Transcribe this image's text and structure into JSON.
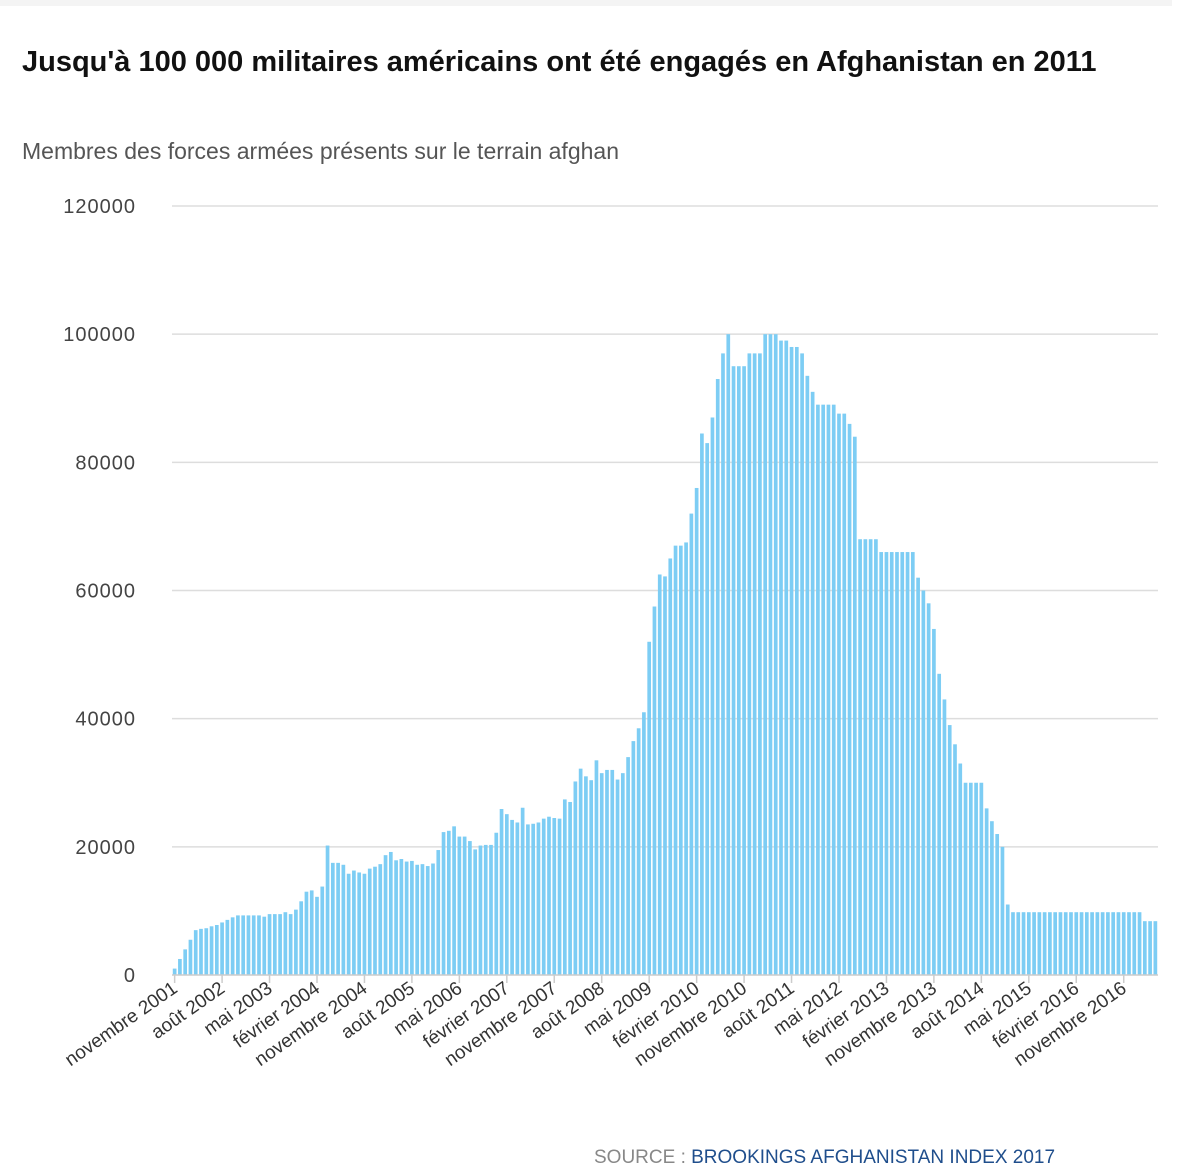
{
  "header": {
    "title": "Jusqu'à 100 000 militaires américains ont été engagés en Afghanistan en 2011",
    "subtitle": "Membres des forces armées présents sur le terrain afghan"
  },
  "source": {
    "label": "SOURCE : ",
    "name": "BROOKINGS AFGHANISTAN INDEX 2017"
  },
  "colors": {
    "bar": "#7dcdf4",
    "gridline": "#dddddd",
    "axis": "#cccccc"
  },
  "chart_data": {
    "type": "bar",
    "title": "Jusqu'à 100 000 militaires américains ont été engagés en Afghanistan en 2011",
    "subtitle": "Membres des forces armées présents sur le terrain afghan",
    "xlabel": "",
    "ylabel": "",
    "ylim": [
      0,
      120000
    ],
    "yticks": [
      0,
      20000,
      40000,
      60000,
      80000,
      100000,
      120000
    ],
    "ytick_labels": [
      "0",
      "20000",
      "40000",
      "60000",
      "80000",
      "100000",
      "120000"
    ],
    "grid": true,
    "legend": "none",
    "x_start": "novembre 2001",
    "x_interval_months": 1,
    "x_tick_every": 9,
    "x_tick_labels": [
      "novembre 2001",
      "août 2002",
      "mai 2003",
      "février 2004",
      "novembre 2004",
      "août 2005",
      "mai 2006",
      "février 2007",
      "novembre 2007",
      "août 2008",
      "mai 2009",
      "février 2010",
      "novembre 2010",
      "août 2011",
      "mai 2012",
      "février 2013",
      "novembre 2013",
      "août 2014",
      "mai 2015",
      "février 2016",
      "novembre 2016"
    ],
    "series": [
      {
        "values": [
          1000,
          2500,
          4000,
          5500,
          7000,
          7200,
          7300,
          7600,
          7800,
          8200,
          8600,
          9000,
          9300,
          9300,
          9300,
          9300,
          9300,
          9100,
          9500,
          9500,
          9500,
          9800,
          9500,
          10200,
          11500,
          13000,
          13200,
          12200,
          13800,
          20200,
          17500,
          17500,
          17200,
          15800,
          16300,
          16000,
          15800,
          16600,
          16900,
          17300,
          18700,
          19200,
          17900,
          18100,
          17700,
          17800,
          17200,
          17300,
          17000,
          17400,
          19500,
          22300,
          22500,
          23200,
          21600,
          21600,
          20900,
          19600,
          20200,
          20300,
          20300,
          22200,
          25900,
          25100,
          24200,
          23800,
          26100,
          23500,
          23600,
          23800,
          24400,
          24700,
          24500,
          24400,
          27400,
          27000,
          30200,
          32200,
          31000,
          30400,
          33500,
          31500,
          32000,
          32000,
          30500,
          31500,
          34000,
          36500,
          38500,
          41000,
          52000,
          57500,
          62500,
          62200,
          65000,
          67000,
          67000,
          67500,
          72000,
          76000,
          84500,
          83000,
          87000,
          93000,
          97000,
          100000,
          95000,
          95000,
          95000,
          97000,
          97000,
          97000,
          100000,
          100000,
          100000,
          99000,
          99000,
          98000,
          98000,
          97000,
          93500,
          91000,
          89000,
          89000,
          89000,
          89000,
          87600,
          87600,
          86000,
          84000,
          68000,
          68000,
          68000,
          68000,
          66000,
          66000,
          66000,
          66000,
          66000,
          66000,
          66000,
          62000,
          60000,
          58000,
          54000,
          47000,
          43000,
          39000,
          36000,
          33000,
          30000,
          30000,
          30000,
          30000,
          26000,
          24000,
          22000,
          20000,
          11000,
          9800,
          9800,
          9800,
          9800,
          9800,
          9800,
          9800,
          9800,
          9800,
          9800,
          9800,
          9800,
          9800,
          9800,
          9800,
          9800,
          9800,
          9800,
          9800,
          9800,
          9800,
          9800,
          9800,
          9800,
          9800,
          8400,
          8400,
          8400
        ]
      }
    ]
  }
}
